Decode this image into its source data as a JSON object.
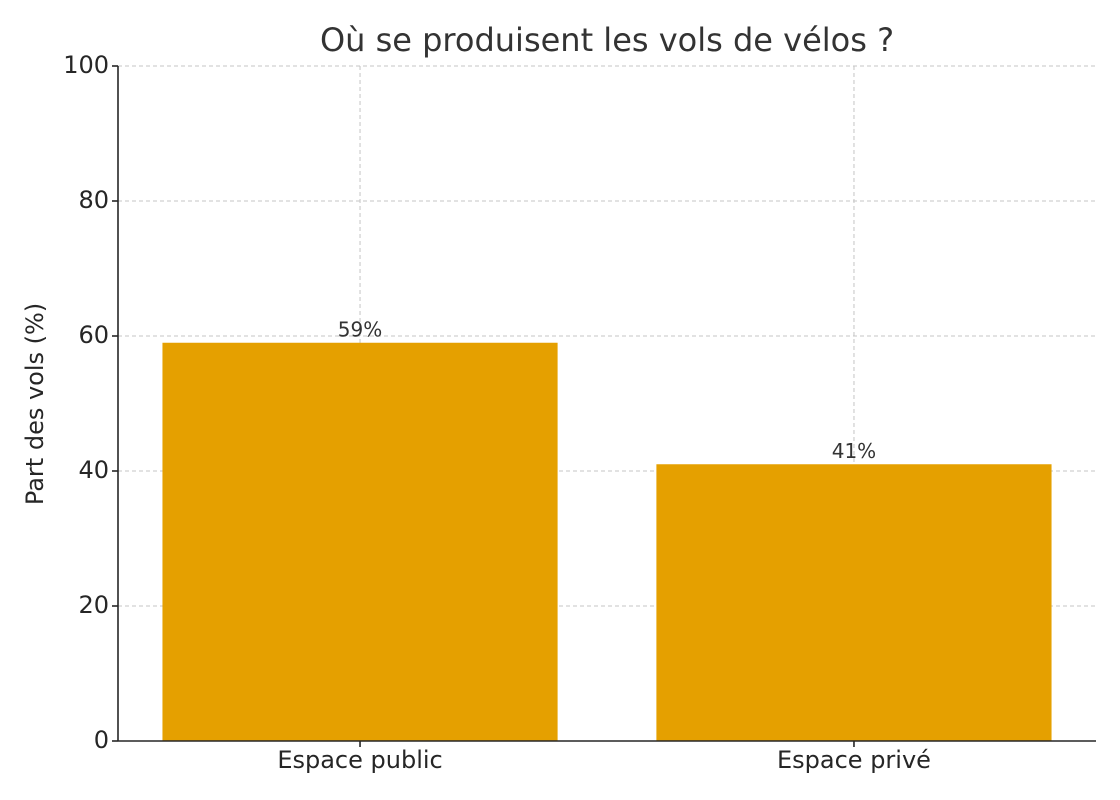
{
  "chart_data": {
    "type": "bar",
    "title": "Où se produisent les vols de vélos ?",
    "y_label": "Part des vols (%)",
    "categories": [
      "Espace public",
      "Espace privé"
    ],
    "values": [
      59,
      41
    ],
    "value_labels": [
      "59%",
      "41%"
    ],
    "color": "#e5a000",
    "ylim": [
      0,
      100
    ],
    "yticks": [
      0,
      20,
      40,
      60,
      80,
      100
    ],
    "grid": true
  }
}
